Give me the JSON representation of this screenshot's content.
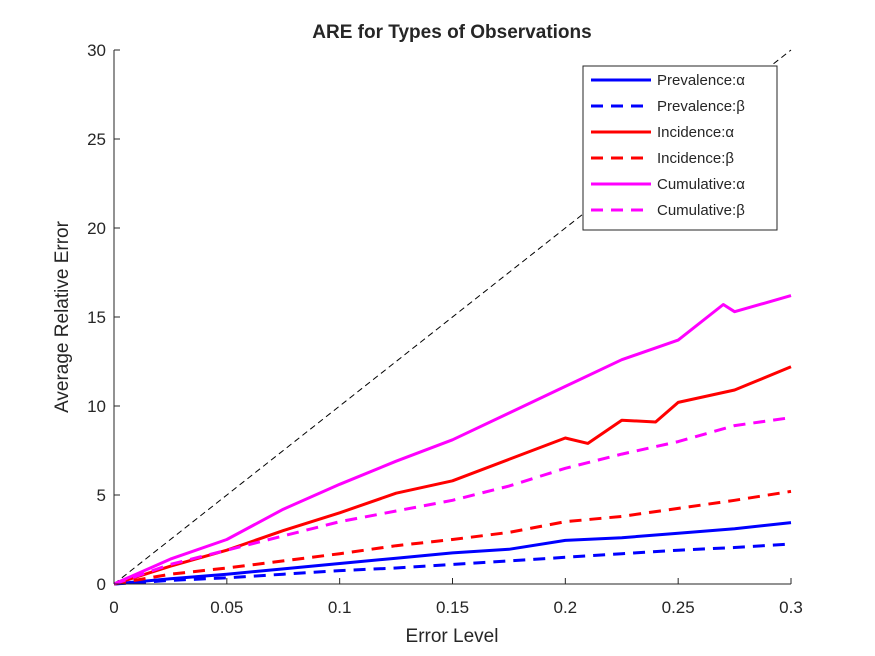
{
  "chart_data": {
    "type": "line",
    "title": "ARE for Types of Observations",
    "xlabel": "Error Level",
    "ylabel": "Average Relative Error",
    "xlim": [
      0,
      0.3
    ],
    "ylim": [
      0,
      30
    ],
    "xticks": [
      0,
      0.05,
      0.1,
      0.15,
      0.2,
      0.25,
      0.3
    ],
    "xtick_labels": [
      "0",
      "0.05",
      "0.1",
      "0.15",
      "0.2",
      "0.25",
      "0.3"
    ],
    "yticks": [
      0,
      5,
      10,
      15,
      20,
      25,
      30
    ],
    "ytick_labels": [
      "0",
      "5",
      "10",
      "15",
      "20",
      "25",
      "30"
    ],
    "grid": false,
    "legend_position": "top-right",
    "reference_line": {
      "x": [
        0,
        0.3
      ],
      "y": [
        0,
        30
      ],
      "color": "#000000",
      "style": "dashed"
    },
    "series": [
      {
        "name": "Prevalence:α",
        "color": "#0000ff",
        "style": "solid",
        "x": [
          0,
          0.025,
          0.05,
          0.075,
          0.1,
          0.125,
          0.15,
          0.175,
          0.2,
          0.225,
          0.25,
          0.275,
          0.3
        ],
        "y": [
          0,
          0.3,
          0.55,
          0.85,
          1.15,
          1.45,
          1.75,
          1.95,
          2.45,
          2.6,
          2.85,
          3.1,
          3.45
        ]
      },
      {
        "name": "Prevalence:β",
        "color": "#0000ff",
        "style": "dashed",
        "x": [
          0,
          0.025,
          0.05,
          0.075,
          0.1,
          0.125,
          0.15,
          0.175,
          0.2,
          0.225,
          0.25,
          0.275,
          0.3
        ],
        "y": [
          0,
          0.2,
          0.35,
          0.55,
          0.75,
          0.9,
          1.1,
          1.3,
          1.5,
          1.7,
          1.9,
          2.05,
          2.25
        ]
      },
      {
        "name": "Incidence:α",
        "color": "#ff0000",
        "style": "solid",
        "x": [
          0,
          0.025,
          0.05,
          0.075,
          0.1,
          0.125,
          0.15,
          0.175,
          0.2,
          0.21,
          0.225,
          0.24,
          0.25,
          0.275,
          0.3
        ],
        "y": [
          0,
          1.0,
          1.9,
          3.0,
          4.0,
          5.1,
          5.8,
          7.0,
          8.2,
          7.9,
          9.2,
          9.1,
          10.2,
          10.9,
          12.2
        ]
      },
      {
        "name": "Incidence:β",
        "color": "#ff0000",
        "style": "dashed",
        "x": [
          0,
          0.025,
          0.05,
          0.075,
          0.1,
          0.125,
          0.15,
          0.175,
          0.2,
          0.225,
          0.25,
          0.275,
          0.3
        ],
        "y": [
          0,
          0.55,
          0.9,
          1.3,
          1.7,
          2.15,
          2.5,
          2.9,
          3.5,
          3.8,
          4.25,
          4.7,
          5.2
        ]
      },
      {
        "name": "Cumulative:α",
        "color": "#ff00ff",
        "style": "solid",
        "x": [
          0,
          0.025,
          0.05,
          0.075,
          0.1,
          0.125,
          0.15,
          0.175,
          0.2,
          0.225,
          0.25,
          0.27,
          0.275,
          0.3
        ],
        "y": [
          0,
          1.4,
          2.5,
          4.2,
          5.6,
          6.9,
          8.1,
          9.6,
          11.1,
          12.6,
          13.7,
          15.7,
          15.3,
          16.2
        ]
      },
      {
        "name": "Cumulative:β",
        "color": "#ff00ff",
        "style": "dashed",
        "x": [
          0,
          0.025,
          0.05,
          0.075,
          0.1,
          0.125,
          0.15,
          0.175,
          0.2,
          0.225,
          0.25,
          0.275,
          0.3
        ],
        "y": [
          0,
          1.1,
          1.9,
          2.7,
          3.5,
          4.1,
          4.7,
          5.5,
          6.5,
          7.3,
          8.0,
          8.9,
          9.35
        ]
      }
    ]
  }
}
